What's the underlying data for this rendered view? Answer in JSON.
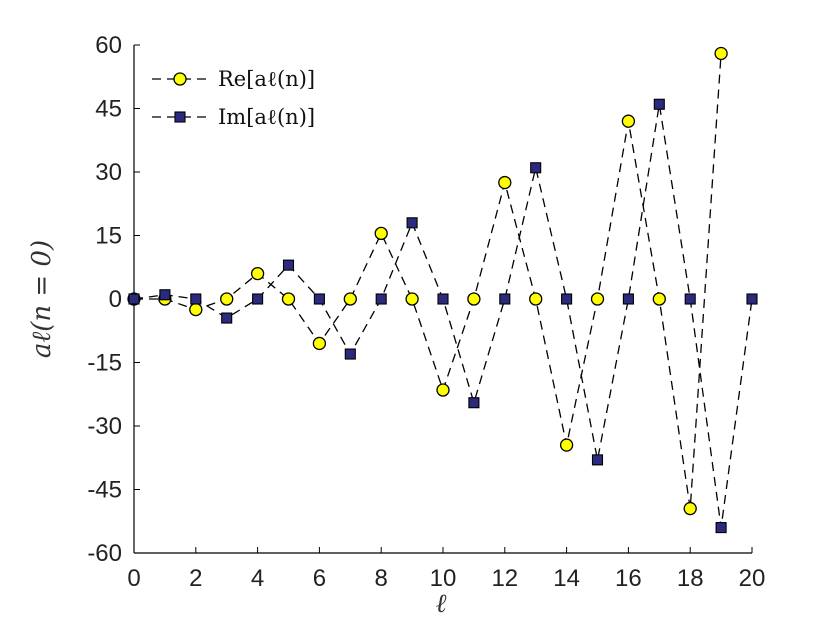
{
  "chart_data": {
    "type": "line",
    "xlabel": "ℓ",
    "ylabel": "aℓ(n = 0)",
    "xlim": [
      0,
      20
    ],
    "ylim": [
      -60,
      60
    ],
    "xticks": [
      "0",
      "2",
      "4",
      "6",
      "8",
      "10",
      "12",
      "14",
      "16",
      "18",
      "20"
    ],
    "yticks": [
      "-60",
      "-45",
      "-30",
      "-15",
      "0",
      "15",
      "30",
      "45",
      "60"
    ],
    "grid": false,
    "legend_position": "top-left",
    "series": [
      {
        "name": "Re[aℓ(n)]",
        "marker": "circle",
        "color": "#ffff00",
        "x": [
          0,
          1,
          2,
          3,
          4,
          5,
          6,
          7,
          8,
          9,
          10,
          11,
          12,
          13,
          14,
          15,
          16,
          17,
          18,
          19
        ],
        "y": [
          0,
          0,
          -2.5,
          0,
          6,
          0,
          -10.5,
          0,
          15.5,
          0,
          -21.5,
          0,
          27.5,
          0,
          -34.5,
          0,
          42,
          0,
          -49.5,
          58
        ]
      },
      {
        "name": "Im[aℓ(n)]",
        "marker": "square",
        "color": "#2b2a7e",
        "x": [
          0,
          1,
          2,
          3,
          4,
          5,
          6,
          7,
          8,
          9,
          10,
          11,
          12,
          13,
          14,
          15,
          16,
          17,
          18,
          19,
          20
        ],
        "y": [
          0,
          1,
          0,
          -4.5,
          0,
          8,
          0,
          -13,
          0,
          18,
          0,
          -24.5,
          0,
          31,
          0,
          -38,
          0,
          46,
          0,
          -54,
          0
        ]
      }
    ]
  }
}
